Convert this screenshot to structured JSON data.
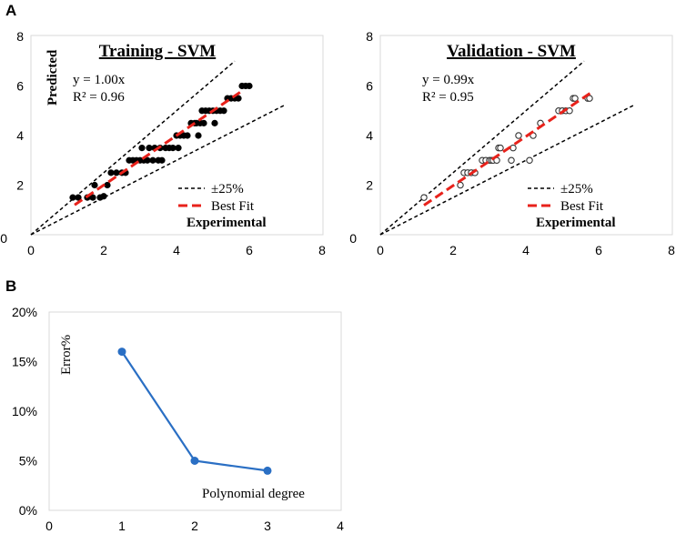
{
  "panel_labels": {
    "a": "A",
    "b": "B"
  },
  "legend": {
    "band": "±25%",
    "fit": "Best Fit"
  },
  "chart_data": [
    {
      "id": "training",
      "type": "scatter",
      "title": "Training - SVM",
      "xlabel": "Experimental",
      "ylabel": "Predicted",
      "equation": "y = 1.00x",
      "r2": "R² = 0.96",
      "xlim": [
        0,
        8
      ],
      "ylim": [
        0,
        8
      ],
      "xticks": [
        "0",
        "2",
        "4",
        "6",
        "8"
      ],
      "yticks": [
        "0",
        "2",
        "4",
        "6",
        "8"
      ],
      "marker": "filled",
      "band_upper_slope": 1.25,
      "band_lower_slope": 0.75,
      "band_xmax": 7,
      "fit_slope": 1.0,
      "fit_x": [
        1.2,
        5.8
      ],
      "points": [
        [
          1.15,
          1.5
        ],
        [
          1.3,
          1.5
        ],
        [
          1.55,
          1.5
        ],
        [
          1.7,
          1.5
        ],
        [
          1.75,
          2.0
        ],
        [
          1.9,
          1.5
        ],
        [
          2.0,
          1.55
        ],
        [
          2.1,
          2.0
        ],
        [
          2.2,
          2.5
        ],
        [
          2.35,
          2.5
        ],
        [
          2.5,
          2.5
        ],
        [
          2.6,
          2.5
        ],
        [
          2.7,
          3.0
        ],
        [
          2.8,
          3.0
        ],
        [
          2.9,
          3.0
        ],
        [
          3.0,
          3.0
        ],
        [
          3.05,
          3.5
        ],
        [
          3.1,
          3.0
        ],
        [
          3.2,
          3.0
        ],
        [
          3.25,
          3.5
        ],
        [
          3.35,
          3.0
        ],
        [
          3.4,
          3.5
        ],
        [
          3.5,
          3.0
        ],
        [
          3.55,
          3.5
        ],
        [
          3.6,
          3.0
        ],
        [
          3.7,
          3.5
        ],
        [
          3.8,
          3.5
        ],
        [
          3.9,
          3.5
        ],
        [
          4.0,
          4.0
        ],
        [
          4.05,
          3.5
        ],
        [
          4.1,
          4.0
        ],
        [
          4.2,
          4.0
        ],
        [
          4.3,
          4.0
        ],
        [
          4.4,
          4.5
        ],
        [
          4.5,
          4.5
        ],
        [
          4.55,
          4.5
        ],
        [
          4.6,
          4.0
        ],
        [
          4.65,
          4.5
        ],
        [
          4.7,
          5.0
        ],
        [
          4.75,
          4.5
        ],
        [
          4.8,
          5.0
        ],
        [
          4.9,
          5.0
        ],
        [
          5.0,
          5.0
        ],
        [
          5.05,
          4.5
        ],
        [
          5.1,
          5.0
        ],
        [
          5.2,
          5.0
        ],
        [
          5.3,
          5.0
        ],
        [
          5.4,
          5.5
        ],
        [
          5.5,
          5.5
        ],
        [
          5.6,
          5.5
        ],
        [
          5.7,
          5.5
        ],
        [
          5.8,
          6.0
        ],
        [
          5.9,
          6.0
        ],
        [
          6.0,
          6.0
        ]
      ]
    },
    {
      "id": "validation",
      "type": "scatter",
      "title": "Validation - SVM",
      "xlabel": "Experimental",
      "ylabel": "",
      "equation": "y = 0.99x",
      "r2": "R² = 0.95",
      "xlim": [
        0,
        8
      ],
      "ylim": [
        0,
        8
      ],
      "xticks": [
        "0",
        "2",
        "4",
        "6",
        "8"
      ],
      "yticks": [
        "0",
        "2",
        "4",
        "6",
        "8"
      ],
      "marker": "open",
      "band_upper_slope": 1.25,
      "band_lower_slope": 0.75,
      "band_xmax": 7,
      "fit_slope": 0.99,
      "fit_x": [
        1.2,
        5.8
      ],
      "points": [
        [
          1.2,
          1.5
        ],
        [
          2.2,
          2.0
        ],
        [
          2.3,
          2.5
        ],
        [
          2.4,
          2.5
        ],
        [
          2.5,
          2.5
        ],
        [
          2.6,
          2.5
        ],
        [
          2.8,
          3.0
        ],
        [
          2.9,
          3.0
        ],
        [
          3.0,
          3.0
        ],
        [
          3.05,
          3.0
        ],
        [
          3.1,
          3.0
        ],
        [
          3.2,
          3.0
        ],
        [
          3.25,
          3.5
        ],
        [
          3.3,
          3.5
        ],
        [
          3.6,
          3.0
        ],
        [
          3.65,
          3.5
        ],
        [
          3.8,
          4.0
        ],
        [
          4.1,
          3.0
        ],
        [
          4.2,
          4.0
        ],
        [
          4.4,
          4.5
        ],
        [
          4.9,
          5.0
        ],
        [
          5.0,
          5.0
        ],
        [
          5.1,
          5.0
        ],
        [
          5.2,
          5.0
        ],
        [
          5.3,
          5.5
        ],
        [
          5.35,
          5.5
        ],
        [
          5.7,
          5.5
        ],
        [
          5.75,
          5.5
        ]
      ]
    },
    {
      "id": "error",
      "type": "line",
      "title": "",
      "xlabel": "Polynomial degree",
      "ylabel": "Error%",
      "xlim": [
        0,
        4
      ],
      "ylim": [
        0,
        20
      ],
      "xticks": [
        "0",
        "1",
        "2",
        "3",
        "4"
      ],
      "yticks": [
        "0%",
        "5%",
        "10%",
        "15%",
        "20%"
      ],
      "x": [
        1,
        2,
        3
      ],
      "y": [
        16,
        5,
        4
      ],
      "color": "#2a6fc4"
    }
  ]
}
